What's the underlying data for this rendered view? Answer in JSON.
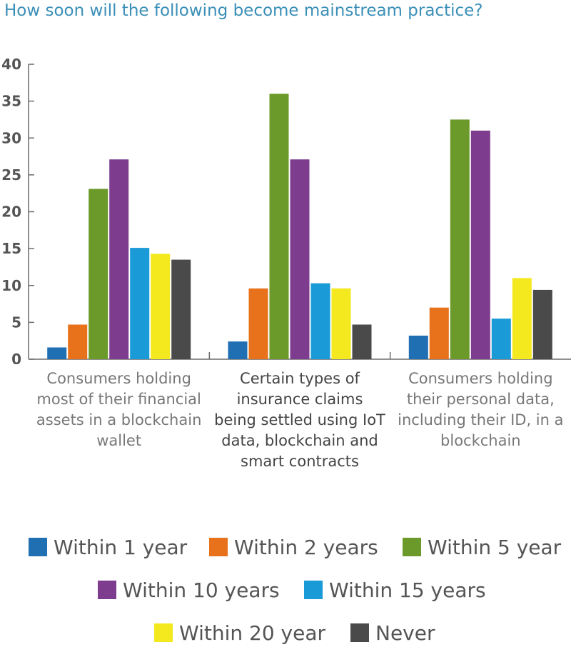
{
  "chart_data": {
    "type": "bar",
    "title": "How soon will the following become mainstream practice?",
    "ylim": [
      0,
      40
    ],
    "yticks": [
      "0",
      "5",
      "10",
      "15",
      "20",
      "25",
      "30",
      "35",
      "40"
    ],
    "grid": false,
    "legend_position": "bottom",
    "categories": [
      "Consumers holding most of their financial assets in a blockchain wallet",
      "Certain types of insurance claims being settled using IoT data, blockchain and smart contracts",
      "Consumers holding their personal data, including their ID, in a blockchain"
    ],
    "series": [
      {
        "name": "Within 1 year",
        "color": "#1f6fb2",
        "values": [
          1.6,
          2.4,
          3.2
        ]
      },
      {
        "name": "Within 2 years",
        "color": "#e8711c",
        "values": [
          4.7,
          9.6,
          7.0
        ]
      },
      {
        "name": "Within 5 year",
        "color": "#6b9a2a",
        "values": [
          23.1,
          36.0,
          32.5
        ]
      },
      {
        "name": "Within 10 years",
        "color": "#7d3c8e",
        "values": [
          27.1,
          27.1,
          31.0
        ]
      },
      {
        "name": "Within 15 years",
        "color": "#1a9ad6",
        "values": [
          15.1,
          10.3,
          5.5
        ]
      },
      {
        "name": "Within 20 year",
        "color": "#f4e81e",
        "values": [
          14.3,
          9.6,
          11.0
        ]
      },
      {
        "name": "Never",
        "color": "#4a4a4a",
        "values": [
          13.5,
          4.7,
          9.4
        ]
      }
    ]
  },
  "label_colors": [
    "#777777",
    "#444444",
    "#777777"
  ]
}
